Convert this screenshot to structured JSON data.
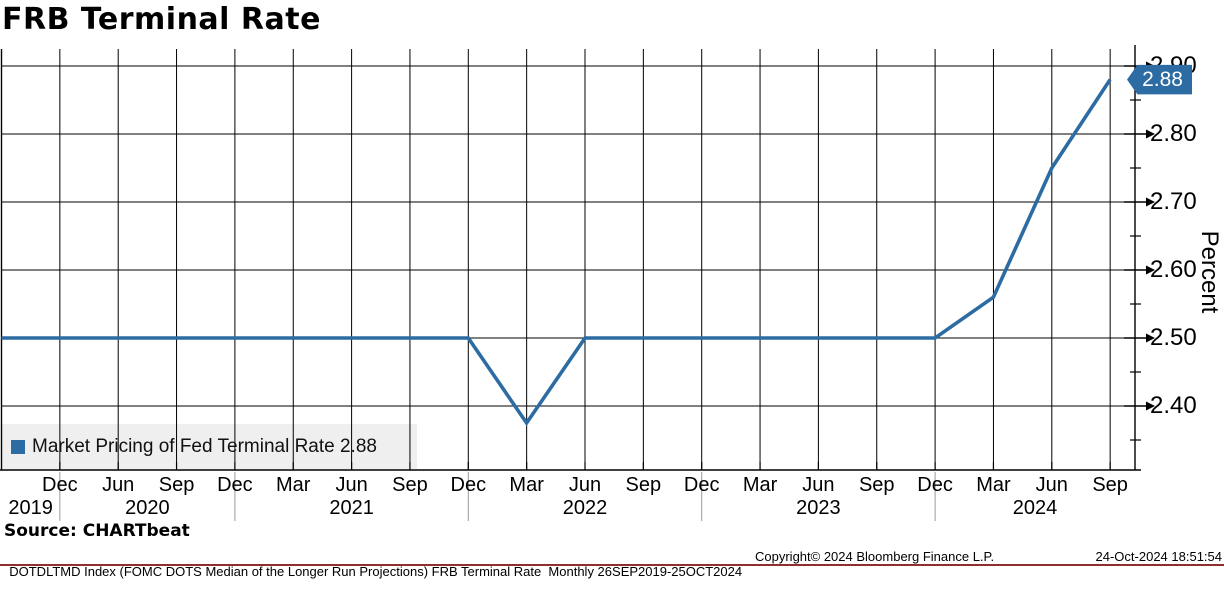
{
  "title": "FRB Terminal Rate",
  "last_value_tag": "2.88",
  "colors": {
    "line": "#2d6ba3",
    "tag_fill": "#2d6ba3",
    "legend_bg": "#efefef",
    "grid": "#000000",
    "year_separator": "#9a9a9a",
    "bottom_divider": "#8f2f2f"
  },
  "legend": {
    "label": "Market Pricing of Fed Terminal Rate 2.88",
    "swatch": "blue-square-icon"
  },
  "y_axis": {
    "title": "Percent",
    "tick_labels": [
      "2.90",
      "2.80",
      "2.70",
      "2.60",
      "2.50",
      "2.40"
    ]
  },
  "x_axis": {
    "tick_labels": [
      "Dec",
      "Jun",
      "Sep",
      "Dec",
      "Mar",
      "Jun",
      "Sep",
      "Dec",
      "Mar",
      "Jun",
      "Sep",
      "Dec",
      "Mar",
      "Jun",
      "Sep",
      "Dec",
      "Mar",
      "Jun",
      "Sep"
    ],
    "year_labels": [
      "2019",
      "2020",
      "2021",
      "2022",
      "2023",
      "2024"
    ]
  },
  "source": "Source: CHARTbeat",
  "footer": {
    "left": "DOTDLTMD Index (FOMC DOTS Median of the Longer Run Projections) FRB Terminal Rate  Monthly 26SEP2019-25OCT2024",
    "center": "Copyright© 2024 Bloomberg Finance L.P.",
    "right": "24-Oct-2024 18:51:54"
  },
  "chart_data": {
    "type": "line",
    "title": "FRB Terminal Rate",
    "ylabel": "Percent",
    "ylim": [
      2.31,
      2.93
    ],
    "yticks": [
      2.9,
      2.8,
      2.7,
      2.6,
      2.5,
      2.4
    ],
    "yticks_minor": [
      2.85,
      2.75,
      2.65,
      2.55,
      2.45,
      2.35
    ],
    "grid": true,
    "legend_position": "bottom-left",
    "x_unit": "months since Sep 2019",
    "x_tick_every_months": 3,
    "period": "Monthly 26SEP2019-25OCT2024",
    "series": [
      {
        "name": "Market Pricing of Fed Terminal Rate",
        "color": "#2d6ba3",
        "last_value": 2.88,
        "points": [
          [
            0,
            2.5
          ],
          [
            24,
            2.5
          ],
          [
            27,
            2.375
          ],
          [
            30,
            2.5
          ],
          [
            48,
            2.5
          ],
          [
            51,
            2.56
          ],
          [
            54,
            2.75
          ],
          [
            57,
            2.88
          ]
        ],
        "key_points": [
          {
            "date": "Sep 2019",
            "value": 2.5
          },
          {
            "date": "Dec 2021",
            "value": 2.5
          },
          {
            "date": "Mar 2022",
            "value": 2.375
          },
          {
            "date": "Jun 2022",
            "value": 2.5
          },
          {
            "date": "Dec 2023",
            "value": 2.5
          },
          {
            "date": "Mar 2024",
            "value": 2.56
          },
          {
            "date": "Jun 2024",
            "value": 2.75
          },
          {
            "date": "Oct 2024",
            "value": 2.88
          }
        ]
      }
    ]
  }
}
